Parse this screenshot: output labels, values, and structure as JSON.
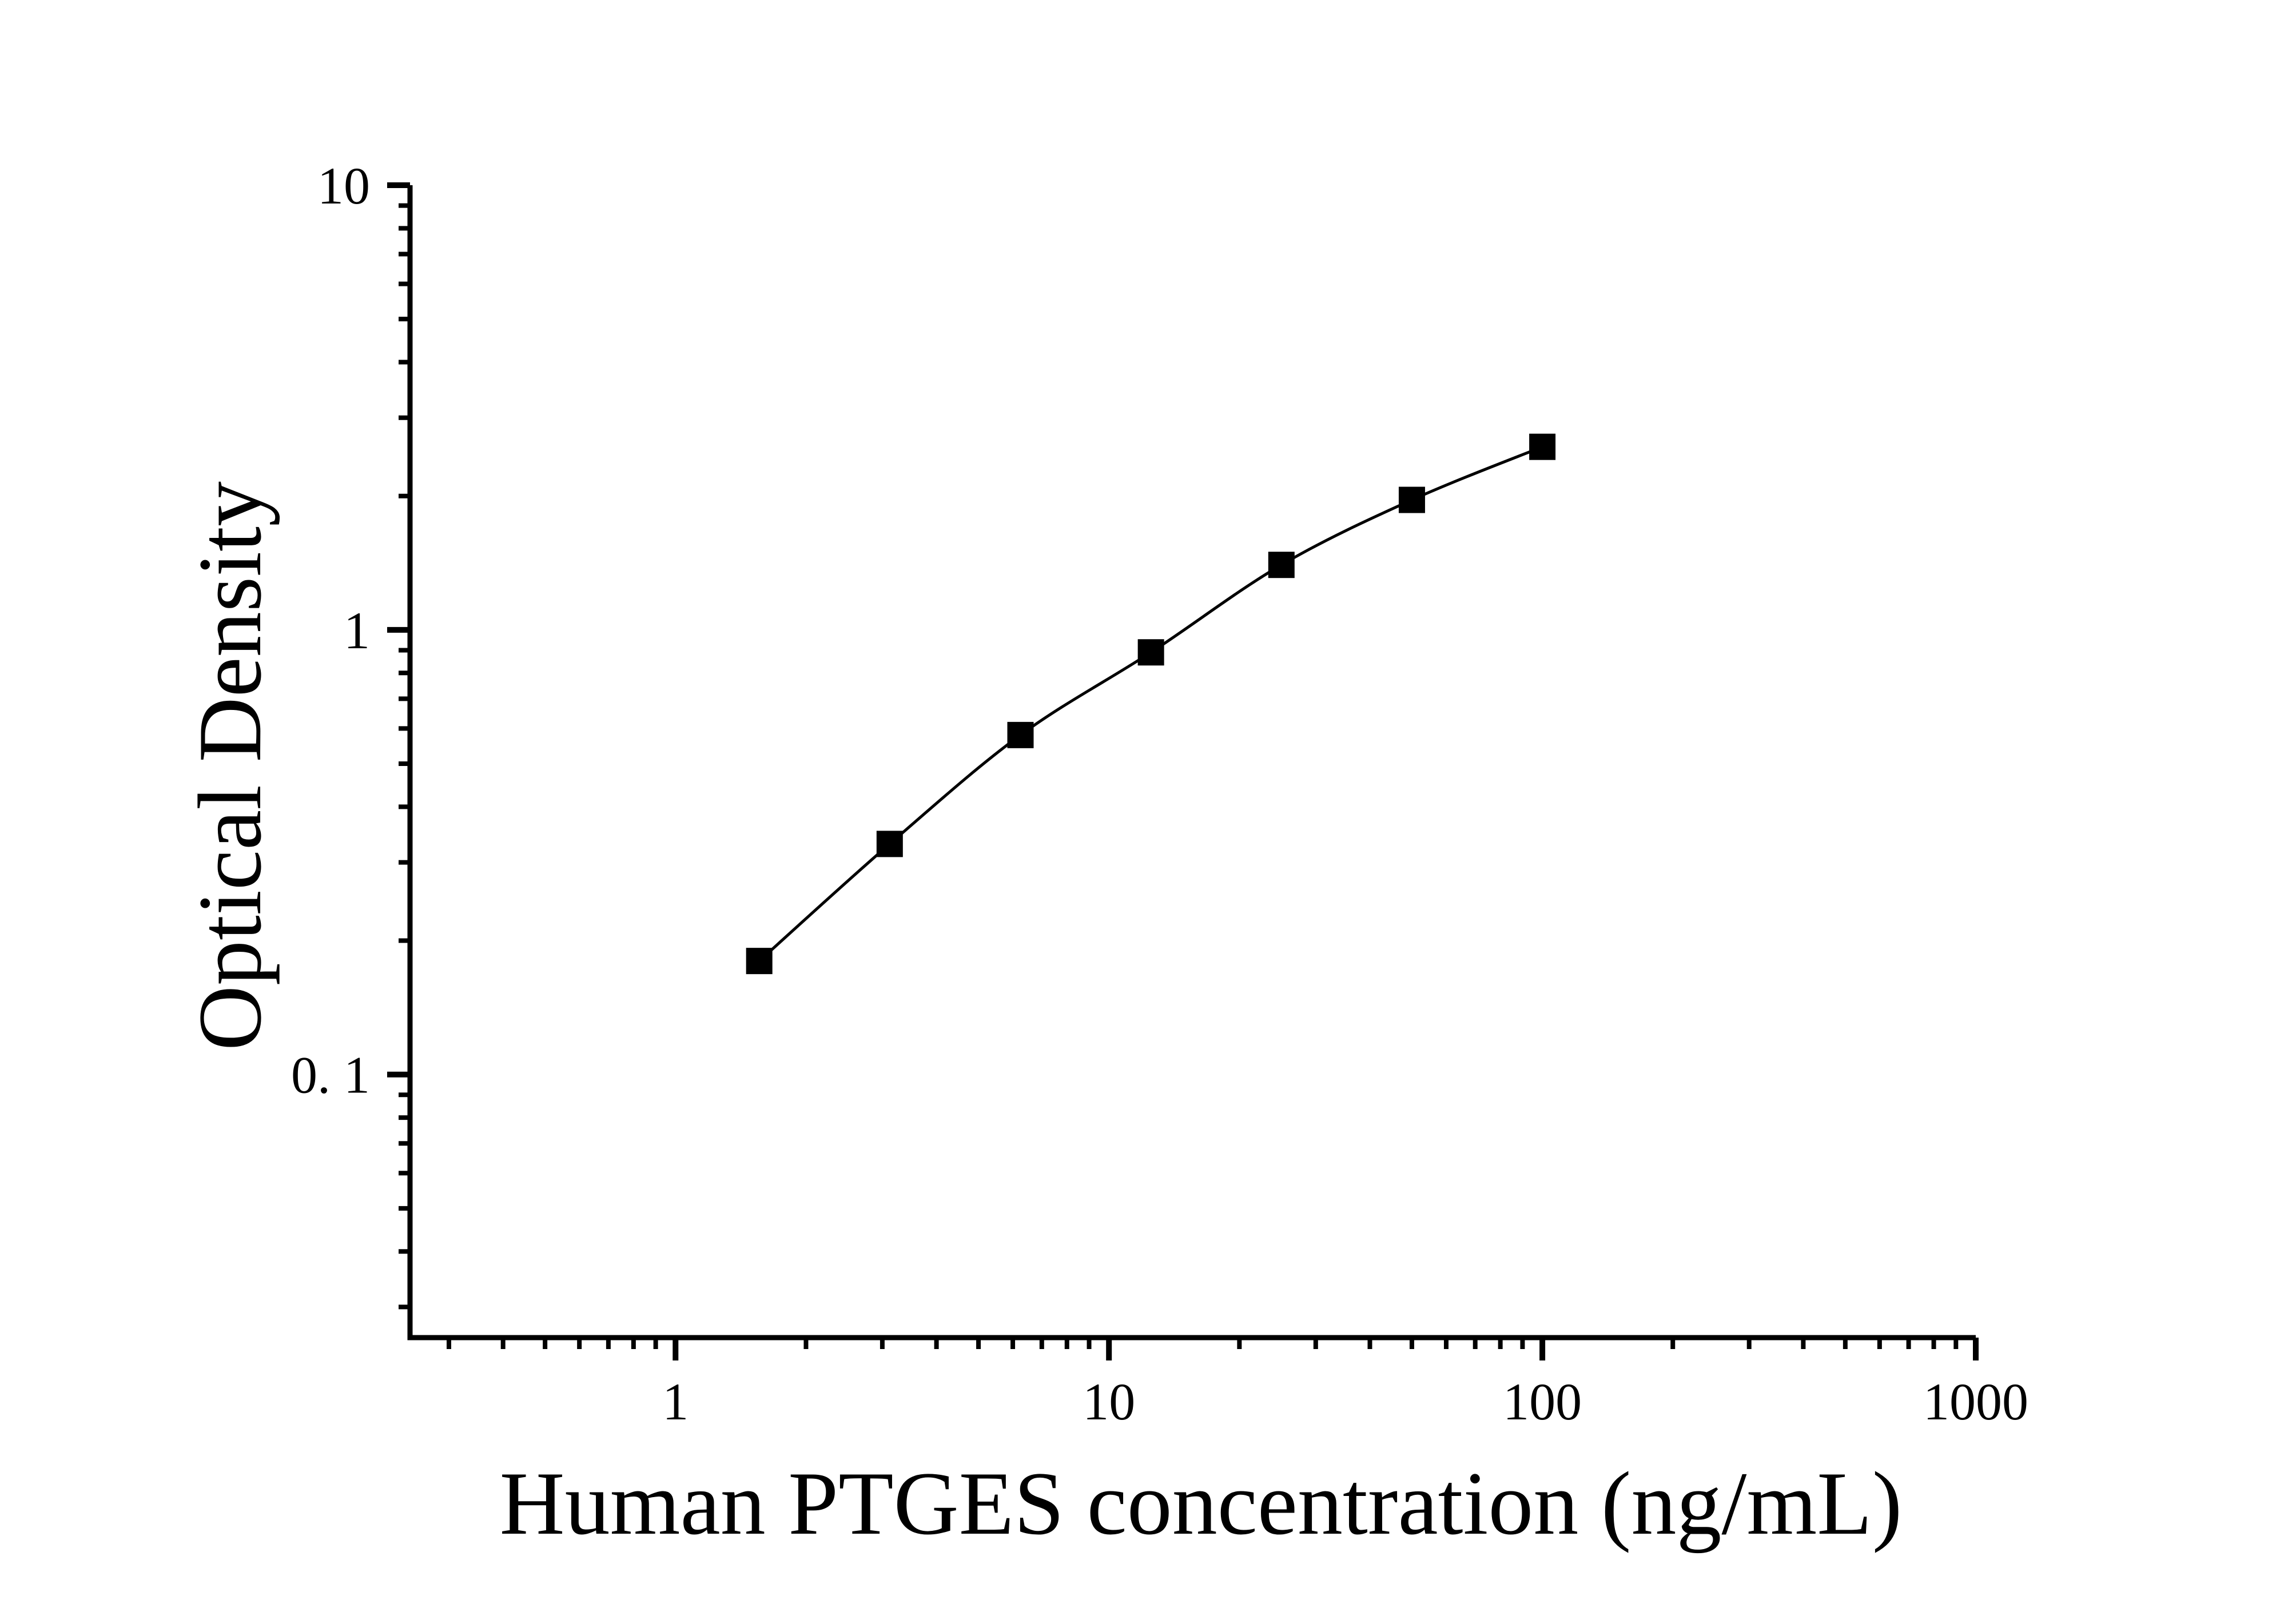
{
  "page": {
    "background_color": "#ffffff",
    "foreground_color": "#000000"
  },
  "chart_data": {
    "type": "line",
    "title": "",
    "xlabel": "Human PTGES concentration (ng/mL)",
    "ylabel": "Optical Density",
    "x_scale": "log",
    "y_scale": "log",
    "xlim": [
      0.244,
      1000
    ],
    "ylim": [
      0.0256,
      10
    ],
    "grid": false,
    "legend": false,
    "axis_color": "#000000",
    "x_ticks": [
      {
        "value": 1,
        "label": "1"
      },
      {
        "value": 10,
        "label": "10"
      },
      {
        "value": 100,
        "label": "100"
      },
      {
        "value": 1000,
        "label": "1000"
      }
    ],
    "y_ticks": [
      {
        "value": 0.1,
        "label": "0. 1"
      },
      {
        "value": 1,
        "label": "1"
      },
      {
        "value": 10,
        "label": "10"
      }
    ],
    "series": [
      {
        "name": "standard-curve",
        "marker": "filled-square",
        "color": "#000000",
        "points": [
          {
            "x": 1.56,
            "y": 0.18
          },
          {
            "x": 3.12,
            "y": 0.33
          },
          {
            "x": 6.25,
            "y": 0.58
          },
          {
            "x": 12.5,
            "y": 0.89
          },
          {
            "x": 25,
            "y": 1.4
          },
          {
            "x": 50,
            "y": 1.96
          },
          {
            "x": 100,
            "y": 2.58
          }
        ]
      }
    ]
  }
}
